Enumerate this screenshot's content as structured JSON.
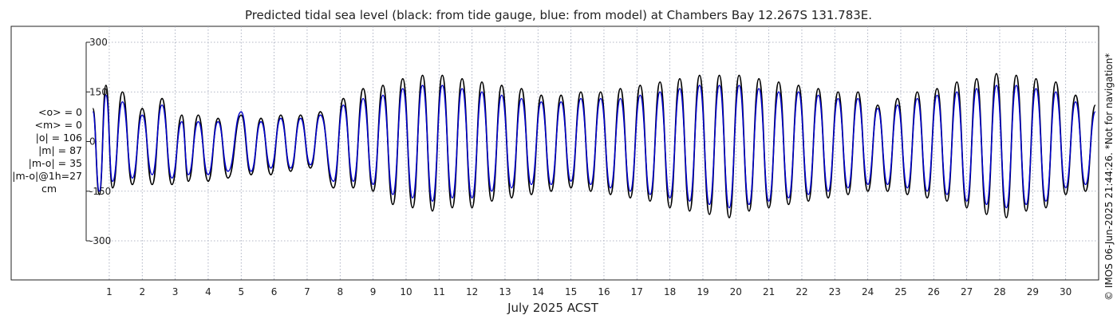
{
  "title": "Predicted tidal sea level (black: from tide gauge, blue: from model) at Chambers Bay 12.267S 131.783E.",
  "stats": [
    "<o> = 0",
    "<m> = 0",
    "|o| = 106",
    "|m| = 87",
    "|m-o| = 35",
    "|m-o|@1h=27",
    "cm"
  ],
  "credit": "© IMOS 06-Jun-2025 21:44:26. *Not for navigation*",
  "colors": {
    "observed": "#000000",
    "model": "#0000cc",
    "grid": "#9aa0b4",
    "axis": "#222222"
  },
  "chart_data": {
    "type": "line",
    "xlabel": "July 2025 ACST",
    "ylabel": "",
    "xlim": [
      0.3,
      31.0
    ],
    "ylim": [
      -320,
      320
    ],
    "yticks": [
      300,
      150,
      0,
      -150,
      -300
    ],
    "xticks": [
      1,
      2,
      3,
      4,
      5,
      6,
      7,
      8,
      9,
      10,
      11,
      12,
      13,
      14,
      15,
      16,
      17,
      18,
      19,
      20,
      21,
      22,
      23,
      24,
      25,
      26,
      27,
      28,
      29,
      30
    ],
    "grid": true,
    "series": [
      {
        "name": "tide gauge",
        "color": "#000000",
        "x": [
          0.5,
          0.7,
          0.9,
          1.1,
          1.4,
          1.7,
          2.0,
          2.3,
          2.6,
          2.9,
          3.2,
          3.4,
          3.7,
          4.0,
          4.3,
          4.6,
          5.0,
          5.3,
          5.6,
          5.9,
          6.2,
          6.5,
          6.8,
          7.1,
          7.4,
          7.8,
          8.1,
          8.4,
          8.7,
          9.0,
          9.3,
          9.6,
          9.9,
          10.2,
          10.5,
          10.8,
          11.1,
          11.4,
          11.7,
          12.0,
          12.3,
          12.6,
          12.9,
          13.2,
          13.5,
          13.8,
          14.1,
          14.4,
          14.7,
          15.0,
          15.3,
          15.6,
          15.9,
          16.2,
          16.5,
          16.8,
          17.1,
          17.4,
          17.7,
          18.0,
          18.3,
          18.6,
          18.9,
          19.2,
          19.5,
          19.8,
          20.1,
          20.4,
          20.7,
          21.0,
          21.3,
          21.6,
          21.9,
          22.2,
          22.5,
          22.8,
          23.1,
          23.4,
          23.7,
          24.0,
          24.3,
          24.6,
          24.9,
          25.2,
          25.5,
          25.8,
          26.1,
          26.4,
          26.7,
          27.0,
          27.3,
          27.6,
          27.9,
          28.2,
          28.5,
          28.8,
          29.1,
          29.4,
          29.7,
          30.0,
          30.3,
          30.6,
          30.9
        ],
        "y": [
          100,
          -160,
          170,
          -140,
          150,
          -130,
          100,
          -130,
          130,
          -130,
          80,
          -120,
          80,
          -120,
          70,
          -110,
          80,
          -100,
          70,
          -100,
          80,
          -90,
          80,
          -80,
          90,
          -140,
          130,
          -140,
          160,
          -150,
          170,
          -190,
          190,
          -200,
          200,
          -210,
          200,
          -200,
          190,
          -200,
          180,
          -180,
          170,
          -170,
          160,
          -160,
          140,
          -150,
          140,
          -140,
          150,
          -150,
          150,
          -160,
          160,
          -170,
          170,
          -180,
          180,
          -200,
          190,
          -210,
          200,
          -220,
          200,
          -230,
          200,
          -210,
          190,
          -200,
          180,
          -190,
          170,
          -180,
          160,
          -170,
          150,
          -160,
          150,
          -150,
          110,
          -150,
          130,
          -160,
          150,
          -170,
          160,
          -180,
          180,
          -200,
          190,
          -220,
          205,
          -230,
          200,
          -210,
          190,
          -200,
          180,
          -160,
          140,
          -150,
          110
        ]
      },
      {
        "name": "model",
        "color": "#0000cc",
        "x": [
          0.5,
          0.7,
          0.9,
          1.1,
          1.4,
          1.7,
          2.0,
          2.3,
          2.6,
          2.9,
          3.2,
          3.4,
          3.7,
          4.0,
          4.3,
          4.6,
          5.0,
          5.3,
          5.6,
          5.9,
          6.2,
          6.5,
          6.8,
          7.1,
          7.4,
          7.8,
          8.1,
          8.4,
          8.7,
          9.0,
          9.3,
          9.6,
          9.9,
          10.2,
          10.5,
          10.8,
          11.1,
          11.4,
          11.7,
          12.0,
          12.3,
          12.6,
          12.9,
          13.2,
          13.5,
          13.8,
          14.1,
          14.4,
          14.7,
          15.0,
          15.3,
          15.6,
          15.9,
          16.2,
          16.5,
          16.8,
          17.1,
          17.4,
          17.7,
          18.0,
          18.3,
          18.6,
          18.9,
          19.2,
          19.5,
          19.8,
          20.1,
          20.4,
          20.7,
          21.0,
          21.3,
          21.6,
          21.9,
          22.2,
          22.5,
          22.8,
          23.1,
          23.4,
          23.7,
          24.0,
          24.3,
          24.6,
          24.9,
          25.2,
          25.5,
          25.8,
          26.1,
          26.4,
          26.7,
          27.0,
          27.3,
          27.6,
          27.9,
          28.2,
          28.5,
          28.8,
          29.1,
          29.4,
          29.7,
          30.0,
          30.3,
          30.6,
          30.9
        ],
        "y": [
          90,
          -150,
          140,
          -120,
          120,
          -110,
          80,
          -100,
          110,
          -110,
          60,
          -100,
          60,
          -100,
          60,
          -90,
          90,
          -90,
          60,
          -80,
          70,
          -80,
          70,
          -70,
          80,
          -120,
          110,
          -120,
          130,
          -130,
          140,
          -160,
          160,
          -170,
          170,
          -180,
          170,
          -170,
          160,
          -170,
          150,
          -150,
          140,
          -140,
          130,
          -130,
          120,
          -130,
          120,
          -120,
          130,
          -130,
          130,
          -140,
          130,
          -150,
          140,
          -160,
          150,
          -170,
          160,
          -180,
          170,
          -190,
          170,
          -200,
          170,
          -190,
          160,
          -180,
          150,
          -170,
          150,
          -160,
          140,
          -150,
          130,
          -140,
          130,
          -130,
          100,
          -130,
          110,
          -140,
          130,
          -150,
          140,
          -160,
          150,
          -180,
          160,
          -190,
          170,
          -200,
          170,
          -190,
          160,
          -180,
          150,
          -140,
          120,
          -130,
          90
        ]
      }
    ]
  }
}
